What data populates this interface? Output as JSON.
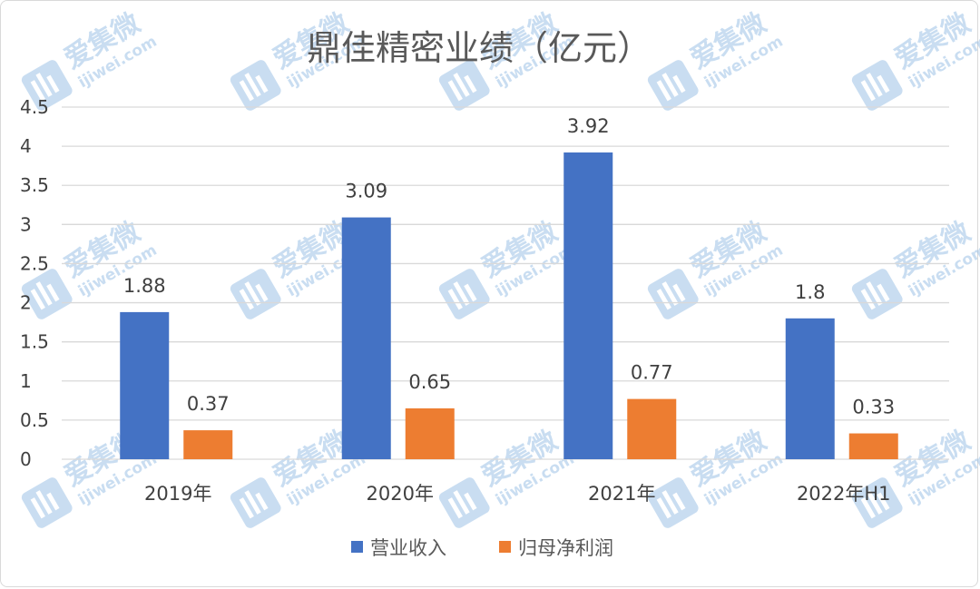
{
  "chart_data": {
    "type": "bar",
    "title": "鼎佳精密业绩（亿元）",
    "categories": [
      "2019年",
      "2020年",
      "2021年",
      "2022年H1"
    ],
    "series": [
      {
        "name": "营业收入",
        "color": "#4472c4",
        "values": [
          1.88,
          3.09,
          3.92,
          1.8
        ],
        "labels": [
          "1.88",
          "3.09",
          "3.92",
          "1.8"
        ]
      },
      {
        "name": "归母净利润",
        "color": "#ed7d31",
        "values": [
          0.37,
          0.65,
          0.77,
          0.33
        ],
        "labels": [
          "0.37",
          "0.65",
          "0.77",
          "0.33"
        ]
      }
    ],
    "yticks": [
      "0",
      "0.5",
      "1",
      "1.5",
      "2",
      "2.5",
      "3",
      "3.5",
      "4",
      "4.5"
    ],
    "ylim": [
      0,
      4.5
    ],
    "grid": true,
    "legend": "bottom"
  },
  "watermark": {
    "brand": "爱集微",
    "site": "ijiwei.com",
    "color": "#9dc3e6"
  }
}
